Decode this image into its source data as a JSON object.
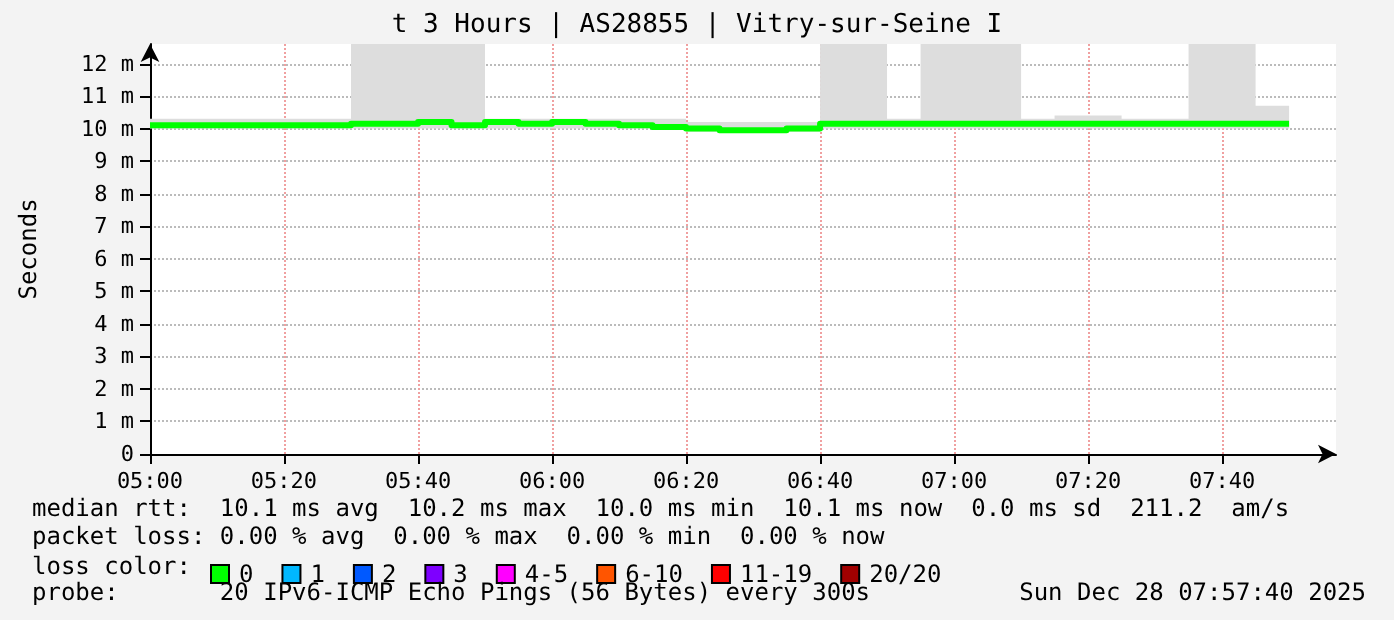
{
  "chart_data": {
    "type": "step",
    "title": "t 3 Hours | AS28855 | Vitry-sur-Seine I",
    "ylabel": "Seconds",
    "xlim": [
      5,
      7.95
    ],
    "xticks": [
      {
        "value": 5,
        "label": "05:00"
      },
      {
        "value": 5.3333,
        "label": "05:20"
      },
      {
        "value": 5.6667,
        "label": "05:40"
      },
      {
        "value": 6,
        "label": "06:00"
      },
      {
        "value": 6.3333,
        "label": "06:20"
      },
      {
        "value": 6.6667,
        "label": "06:40"
      },
      {
        "value": 7,
        "label": "07:00"
      },
      {
        "value": 7.3333,
        "label": "07:20"
      },
      {
        "value": 7.6667,
        "label": "07:40"
      }
    ],
    "ylim": [
      0,
      12.6
    ],
    "yticks": [
      0,
      {
        "value": 1,
        "label": "1 m"
      },
      {
        "value": 2,
        "label": "2 m"
      },
      {
        "value": 3,
        "label": "3 m"
      },
      {
        "value": 4,
        "label": "4 m"
      },
      {
        "value": 5,
        "label": "5 m"
      },
      {
        "value": 6,
        "label": "6 m"
      },
      {
        "value": 7,
        "label": "7 m"
      },
      {
        "value": 8,
        "label": "8 m"
      },
      {
        "value": 9,
        "label": "9 m"
      },
      {
        "value": 10,
        "label": "10 m"
      },
      {
        "value": 11,
        "label": "11 m"
      },
      {
        "value": 12,
        "label": "12 m"
      }
    ],
    "grid": true,
    "legend": "bottom",
    "legend_title": "loss color:",
    "marker": "none",
    "series": [
      {
        "name": "0",
        "color": "#00ff00",
        "x": [
          5,
          5.0833,
          5.1667,
          5.25,
          5.3333,
          5.4167,
          5.5,
          5.5833,
          5.6667,
          5.75,
          5.8333,
          5.9167,
          6,
          6.0833,
          6.1667,
          6.25,
          6.3333,
          6.4167,
          6.5,
          6.5833,
          6.6667,
          6.75,
          6.8333,
          6.9167,
          7,
          7.0833,
          7.1667,
          7.25,
          7.3333,
          7.4167,
          7.5,
          7.5833,
          7.6667,
          7.75,
          7.8333
        ],
        "values": [
          10.1,
          10.1,
          10.1,
          10.1,
          10.1,
          10.1,
          10.15,
          10.15,
          10.2,
          10.1,
          10.2,
          10.15,
          10.2,
          10.15,
          10.1,
          10.05,
          10.0,
          9.95,
          9.95,
          10.0,
          10.15,
          10.15,
          10.15,
          10.15,
          10.15,
          10.15,
          10.15,
          10.15,
          10.15,
          10.15,
          10.15,
          10.15,
          10.15,
          10.15,
          10.15
        ],
        "lower": [
          10,
          10,
          10,
          10,
          10,
          10,
          10,
          10,
          10,
          10,
          10,
          10,
          10,
          10,
          10,
          10,
          9.9,
          9.9,
          9.9,
          9.9,
          10,
          10,
          10,
          10,
          10,
          10,
          10,
          10,
          10,
          10,
          10,
          10,
          10,
          10,
          10
        ],
        "upper": [
          10.3,
          10.3,
          10.3,
          10.3,
          10.3,
          10.3,
          12.6,
          12.6,
          12.6,
          12.6,
          10.3,
          10.3,
          10.3,
          10.3,
          10.3,
          10.3,
          10.2,
          10.2,
          10.2,
          10.2,
          12.6,
          12.6,
          10.3,
          12.6,
          12.6,
          12.6,
          10.3,
          10.4,
          10.4,
          10.3,
          10.3,
          12.6,
          12.6,
          10.7,
          10.7
        ]
      },
      {
        "name": "1",
        "color": "#00b8ff"
      },
      {
        "name": "2",
        "color": "#0059ff"
      },
      {
        "name": "3",
        "color": "#7e00ff"
      },
      {
        "name": "4-5",
        "color": "#ff00ff"
      },
      {
        "name": "6-10",
        "color": "#ff5500"
      },
      {
        "name": "11-19",
        "color": "#ff0000"
      },
      {
        "name": "20/20",
        "color": "#a10000"
      }
    ],
    "annotations": [
      "median rtt:  10.1 ms avg  10.2 ms max  10.0 ms min  10.1 ms now  0.0 ms sd  211.2  am/s",
      "packet loss: 0.00 % avg  0.00 % max  0.00 % min  0.00 % now",
      "probe:       20 IPv6-ICMP Echo Pings (56 Bytes) every 300s",
      "Sun Dec 28 07:57:40 2025"
    ]
  }
}
